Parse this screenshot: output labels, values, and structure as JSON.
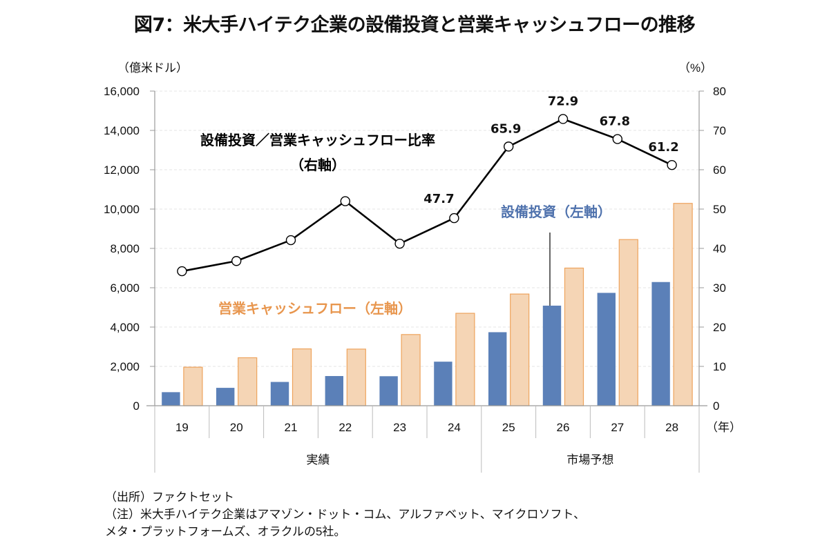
{
  "title": "図7：米大手ハイテク企業の設備投資と営業キャッシュフローの推移",
  "chart_data": {
    "type": "bar",
    "title": "図7：米大手ハイテク企業の設備投資と営業キャッシュフローの推移",
    "categories": [
      "19",
      "20",
      "21",
      "22",
      "23",
      "24",
      "25",
      "26",
      "27",
      "28"
    ],
    "category_groups": [
      {
        "label": "実績",
        "range": [
          "19",
          "24"
        ]
      },
      {
        "label": "市場予想",
        "range": [
          "25",
          "28"
        ]
      }
    ],
    "xlabel": "（年）",
    "ylabel_left": "（億米ドル）",
    "ylabel_right": "（%）",
    "ylim_left": [
      0,
      16000
    ],
    "ylim_right": [
      0,
      80
    ],
    "yticks_left": [
      "0",
      "2,000",
      "4,000",
      "6,000",
      "8,000",
      "10,000",
      "12,000",
      "14,000",
      "16,000"
    ],
    "yticks_right": [
      "0",
      "10",
      "20",
      "30",
      "40",
      "50",
      "60",
      "70",
      "80"
    ],
    "grid": true,
    "series": [
      {
        "name": "設備投資（左軸）",
        "type": "bar",
        "axis": "left",
        "color": "#5b80b8",
        "values": [
          700,
          920,
          1220,
          1520,
          1510,
          2250,
          3750,
          5100,
          5750,
          6300
        ]
      },
      {
        "name": "営業キャッシュフロー（左軸）",
        "type": "bar",
        "axis": "left",
        "color": "#f5d5b5",
        "edge_color": "#eea35c",
        "values": [
          1960,
          2440,
          2890,
          2880,
          3620,
          4700,
          5680,
          7000,
          8450,
          10290
        ]
      },
      {
        "name": "設備投資／営業キャッシュフロー比率（右軸）",
        "type": "line",
        "axis": "right",
        "color": "#000000",
        "values": [
          34.2,
          36.8,
          42.1,
          52.0,
          41.2,
          47.7,
          65.9,
          72.9,
          67.8,
          61.2
        ],
        "data_labels": [
          null,
          null,
          null,
          null,
          null,
          "47.7",
          "65.9",
          "72.9",
          "67.8",
          "61.2"
        ]
      }
    ],
    "annotations": [
      {
        "text": "設備投資／営業キャッシュフロー比率",
        "line2": "（右軸）",
        "color": "#000000"
      },
      {
        "text": "設備投資（左軸）",
        "color": "#4f72ad"
      },
      {
        "text": "営業キャッシュフロー（左軸）",
        "color": "#e8964e"
      }
    ]
  },
  "notes": {
    "source": "（出所）ファクトセット",
    "note_line1": "（注）米大手ハイテク企業はアマゾン・ドット・コム、アルファベット、マイクロソフト、",
    "note_line2": "メタ・プラットフォームズ、オラクルの5社。"
  }
}
